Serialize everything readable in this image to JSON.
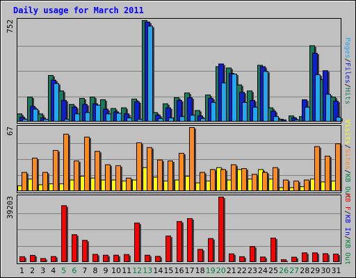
{
  "colors": {
    "background": "#ffffff",
    "frame": "#c0c0c0",
    "panel": "#c0c0c0",
    "hits": "#167a5d",
    "files": "#0b1fd4",
    "pages": "#20a8f0",
    "visits": "#ffff00",
    "sites": "#ff8a1c",
    "kb_f": "#ff0000",
    "kb_in": "#0000ff",
    "kb_out": "#008040",
    "title": "#0000ff",
    "weekend": "#008040",
    "weekday": "#000000"
  },
  "chart_data": {
    "type": "bar",
    "title": "Daily usage for March 2011",
    "categories": [
      "1",
      "2",
      "3",
      "4",
      "5",
      "6",
      "7",
      "8",
      "9",
      "10",
      "11",
      "12",
      "13",
      "14",
      "15",
      "16",
      "17",
      "18",
      "19",
      "20",
      "21",
      "22",
      "23",
      "24",
      "25",
      "26",
      "27",
      "28",
      "29",
      "30",
      "31"
    ],
    "weekend_days": [
      "5",
      "6",
      "12",
      "13",
      "19",
      "20",
      "26",
      "27"
    ],
    "panels": [
      {
        "max_label": "752",
        "ylim": [
          0,
          752
        ],
        "right_label": [
          {
            "text": "Pages",
            "color": "#20a8f0"
          },
          {
            "text": "/",
            "color": "#000000"
          },
          {
            "text": "Files",
            "color": "#0b1fd4"
          },
          {
            "text": "/",
            "color": "#000000"
          },
          {
            "text": "Hits",
            "color": "#167a5d"
          }
        ],
        "series": [
          {
            "name": "Hits",
            "color": "#167a5d",
            "values": [
              60,
              185,
              60,
              345,
              230,
              130,
              175,
              185,
              165,
              100,
              105,
              170,
              752,
              70,
              135,
              180,
              215,
              85,
              200,
              410,
              400,
              275,
              230,
              420,
              105,
              20,
              45,
              40,
              565,
              315,
              185
            ]
          },
          {
            "name": "Files",
            "color": "#0b1fd4",
            "values": [
              35,
              115,
              30,
              310,
              160,
              110,
              130,
              135,
              95,
              75,
              60,
              150,
              740,
              50,
              105,
              160,
              180,
              45,
              175,
              430,
              360,
              220,
              160,
              410,
              80,
              15,
              30,
              165,
              510,
              380,
              155
            ]
          },
          {
            "name": "Pages",
            "color": "#20a8f0",
            "values": [
              20,
              95,
              20,
              285,
              20,
              60,
              70,
              125,
              60,
              65,
              30,
              20,
              710,
              25,
              30,
              40,
              50,
              25,
              145,
              290,
              355,
              145,
              110,
              375,
              40,
              5,
              15,
              110,
              350,
              205,
              35
            ]
          }
        ]
      },
      {
        "max_label": "67",
        "ylim": [
          0,
          67
        ],
        "right_label": [
          {
            "text": "Visits",
            "color": "#ffff00"
          },
          {
            "text": "/",
            "color": "#000000"
          },
          {
            "text": "Sites",
            "color": "#ff8a1c"
          },
          {
            "text": "/",
            "color": "#000000"
          },
          {
            "text": "KB Out",
            "color": "#008040"
          }
        ],
        "series": [
          {
            "name": "Visits",
            "color": "#ffff00",
            "values": [
              6,
              13,
              7,
              8,
              8,
              12,
              16,
              14,
              12,
              12,
              11,
              12,
              25,
              15,
              11,
              12,
              16,
              9,
              11,
              25,
              12,
              23,
              13,
              23,
              13,
              4,
              4,
              5,
              13,
              10,
              11
            ]
          },
          {
            "name": "Sites",
            "color": "#ff8a1c",
            "values": [
              20,
              35,
              20,
              43,
              60,
              32,
              57,
              42,
              28,
              27,
              14,
              51,
              46,
              33,
              32,
              40,
              67,
              20,
              23,
              23,
              28,
              24,
              18,
              20,
              25,
              12,
              11,
              12,
              47,
              37,
              50
            ]
          }
        ]
      },
      {
        "max_label": "39203",
        "ylim": [
          0,
          39203
        ],
        "right_label": [
          {
            "text": "KB F",
            "color": "#ff0000"
          },
          {
            "text": "/",
            "color": "#000000"
          },
          {
            "text": "KB In",
            "color": "#0000ff"
          },
          {
            "text": "/",
            "color": "#000000"
          },
          {
            "text": "KB Out",
            "color": "#008040"
          }
        ],
        "series": [
          {
            "name": "KB F",
            "color": "#ff0000",
            "values": [
              3400,
              4200,
              2300,
              3500,
              34000,
              16600,
              13200,
              4800,
              4300,
              4300,
              4700,
              23600,
              4300,
              3600,
              15800,
              24500,
              26300,
              7800,
              14300,
              39203,
              5100,
              3400,
              9500,
              3200,
              14600,
              1600,
              3100,
              5700,
              5700,
              5200,
              5000
            ]
          }
        ]
      }
    ]
  }
}
